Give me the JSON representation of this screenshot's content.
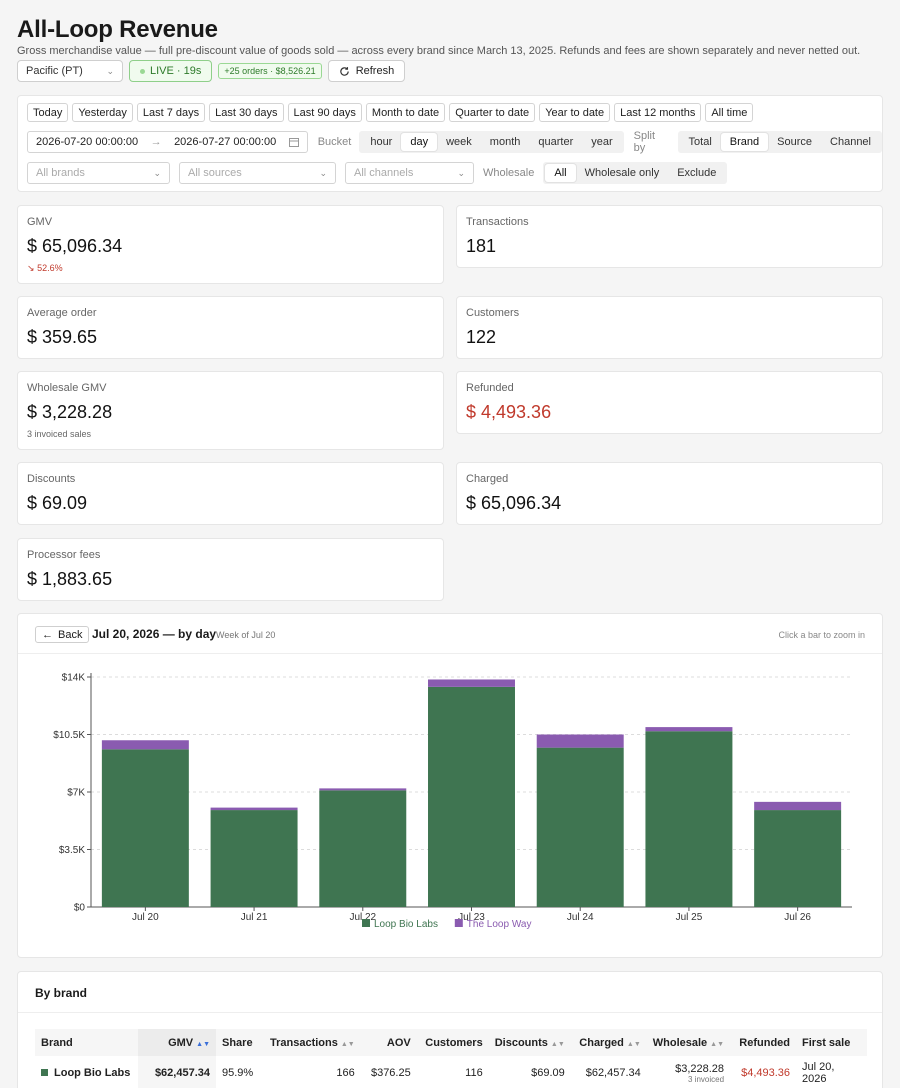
{
  "header": {
    "title": "All-Loop Revenue",
    "subtitle": "Gross merchandise value — full pre-discount value of goods sold — across every brand since March 13, 2025. Refunds and fees are shown separately and never netted out.",
    "timezone": "Pacific (PT)",
    "live_label": "LIVE · 19s",
    "orders_badge": "+25 orders · $8,526.21",
    "refresh_label": "Refresh"
  },
  "filters": {
    "presets": [
      "Today",
      "Yesterday",
      "Last 7 days",
      "Last 30 days",
      "Last 90 days",
      "Month to date",
      "Quarter to date",
      "Year to date",
      "Last 12 months",
      "All time"
    ],
    "date_from": "2026-07-20 00:00:00",
    "date_arrow": "→",
    "date_to": "2026-07-27 00:00:00",
    "bucket_label": "Bucket",
    "buckets": [
      "hour",
      "day",
      "week",
      "month",
      "quarter",
      "year"
    ],
    "bucket_active": "day",
    "split_label": "Split by",
    "splits": [
      "Total",
      "Brand",
      "Source",
      "Channel"
    ],
    "split_active": "Brand",
    "brands_placeholder": "All brands",
    "sources_placeholder": "All sources",
    "channels_placeholder": "All channels",
    "wholesale_label": "Wholesale",
    "wholesale_options": [
      "All",
      "Wholesale only",
      "Exclude"
    ],
    "wholesale_active": "All"
  },
  "stats": {
    "gmv": {
      "label": "GMV",
      "value": "$ 65,096.34",
      "change": "52.6%"
    },
    "transactions": {
      "label": "Transactions",
      "value": "181"
    },
    "avg_order": {
      "label": "Average order",
      "value": "$ 359.65"
    },
    "customers": {
      "label": "Customers",
      "value": "122"
    },
    "wholesale_gmv": {
      "label": "Wholesale GMV",
      "value": "$ 3,228.28",
      "note": "3 invoiced sales"
    },
    "refunded": {
      "label": "Refunded",
      "value": "$ 4,493.36"
    },
    "discounts": {
      "label": "Discounts",
      "value": "$ 69.09"
    },
    "charged": {
      "label": "Charged",
      "value": "$ 65,096.34"
    },
    "processor_fees": {
      "label": "Processor fees",
      "value": "$ 1,883.65"
    }
  },
  "chart_header": {
    "back_label": "Back",
    "title": "Jul 20, 2026 — by day",
    "subtitle": "Week of Jul 20",
    "hint": "Click a bar to zoom in"
  },
  "chart_data": {
    "type": "bar",
    "stacked": true,
    "title": "Jul 20, 2026 — by day",
    "categories": [
      "Jul 20",
      "Jul 21",
      "Jul 22",
      "Jul 23",
      "Jul 24",
      "Jul 25",
      "Jul 26"
    ],
    "series": [
      {
        "name": "Loop Bio Labs",
        "color": "#3f7551",
        "values": [
          9600,
          5900,
          7100,
          13400,
          9700,
          10700,
          5900
        ]
      },
      {
        "name": "The Loop Way",
        "color": "#8a5bb0",
        "values": [
          550,
          150,
          120,
          450,
          800,
          250,
          500
        ]
      }
    ],
    "ylim": [
      0,
      14000
    ],
    "yticks": [
      0,
      3500,
      7000,
      10500,
      14000
    ],
    "ytick_labels": [
      "$0",
      "$3.5K",
      "$7K",
      "$10.5K",
      "$14K"
    ],
    "grid": true,
    "legend": "bottom"
  },
  "brand_table": {
    "title": "By brand",
    "columns": [
      "Brand",
      "GMV",
      "Share",
      "Transactions",
      "AOV",
      "Customers",
      "Discounts",
      "Charged",
      "Wholesale",
      "Refunded",
      "First sale"
    ],
    "rows": [
      {
        "brand": "Loop Bio Labs",
        "gmv": "$62,457.34",
        "share": "95.9%",
        "transactions": "166",
        "aov": "$376.25",
        "customers": "116",
        "discounts": "$69.09",
        "charged": "$62,457.34",
        "wholesale": "$3,228.28",
        "wholesale_note": "3 invoiced",
        "refunded": "$4,493.36",
        "first_sale": "Jul 20, 2026"
      }
    ]
  }
}
